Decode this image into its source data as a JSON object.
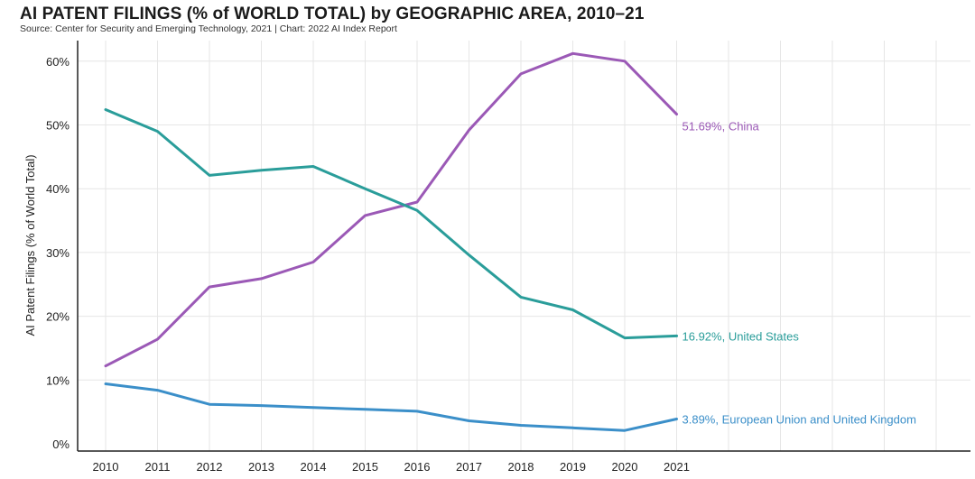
{
  "chart_data": {
    "type": "line",
    "title": "AI PATENT FILINGS (% of WORLD TOTAL) by GEOGRAPHIC AREA, 2010–21",
    "source": "Source: Center for Security and Emerging Technology, 2021 | Chart: 2022 AI Index Report",
    "ylabel": "AI Patent Filings (% of World Total)",
    "xlabel": "",
    "x": [
      2010,
      2011,
      2012,
      2013,
      2014,
      2015,
      2016,
      2017,
      2018,
      2019,
      2020,
      2021
    ],
    "x_tick_labels": [
      "2010",
      "2011",
      "2012",
      "2013",
      "2014",
      "2015",
      "2016",
      "2017",
      "2018",
      "2019",
      "2020",
      "2021"
    ],
    "y_ticks": [
      0,
      10,
      20,
      30,
      40,
      50,
      60
    ],
    "y_tick_labels": [
      "0%",
      "10%",
      "20%",
      "30%",
      "40%",
      "50%",
      "60%"
    ],
    "ylim": [
      0,
      65
    ],
    "grid": true,
    "series": [
      {
        "name": "China",
        "color": "#9b59b6",
        "values": [
          12.2,
          16.4,
          24.6,
          25.9,
          28.5,
          35.8,
          37.9,
          49.2,
          58.0,
          61.2,
          60.0,
          51.69
        ],
        "end_label": "51.69%, China"
      },
      {
        "name": "United States",
        "color": "#2a9d9a",
        "values": [
          52.4,
          49.0,
          42.1,
          42.9,
          43.5,
          40.0,
          36.6,
          29.6,
          23.0,
          21.0,
          16.6,
          16.92
        ],
        "end_label": "16.92%, United States"
      },
      {
        "name": "European Union and United Kingdom",
        "color": "#3b8fc9",
        "values": [
          9.4,
          8.4,
          6.2,
          6.0,
          5.7,
          5.4,
          5.1,
          3.6,
          2.9,
          2.5,
          2.1,
          3.89
        ],
        "end_label": "3.89%, European Union and United Kingdom"
      }
    ]
  }
}
